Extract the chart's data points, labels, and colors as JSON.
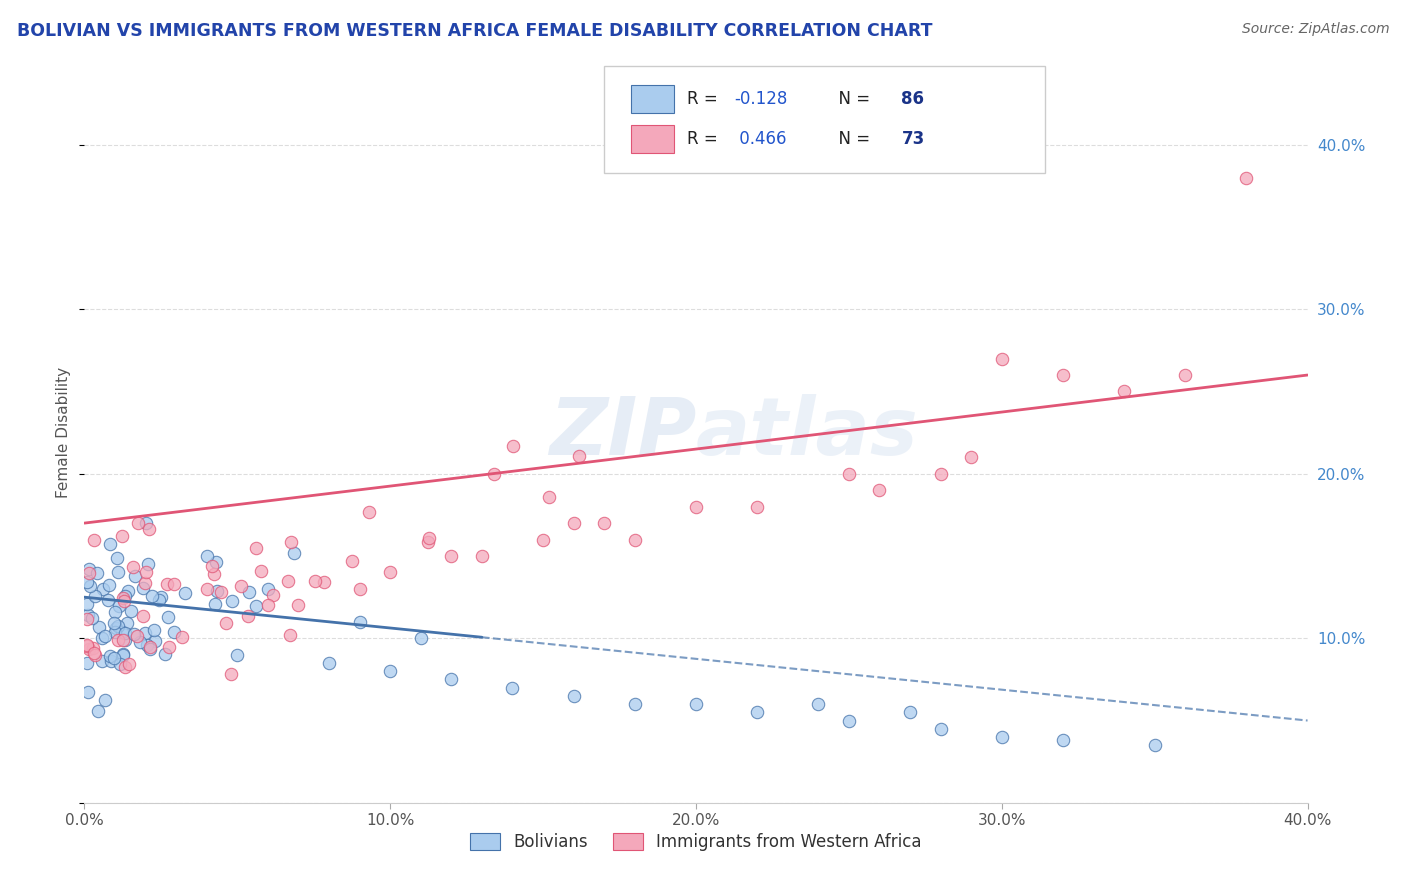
{
  "title": "BOLIVIAN VS IMMIGRANTS FROM WESTERN AFRICA FEMALE DISABILITY CORRELATION CHART",
  "source": "Source: ZipAtlas.com",
  "ylabel": "Female Disability",
  "x_min": 0.0,
  "x_max": 0.4,
  "y_min": 0.0,
  "y_max": 0.45,
  "bolivians_R": -0.128,
  "bolivians_N": 86,
  "western_africa_R": 0.466,
  "western_africa_N": 73,
  "bolivian_color": "#aaccee",
  "western_africa_color": "#f4a8bb",
  "bolivian_line_color": "#4472aa",
  "western_africa_line_color": "#e05575",
  "legend_R_color": "#2255cc",
  "legend_N_color": "#1a3388",
  "title_color": "#2244aa",
  "ytick_color": "#4488cc",
  "background_color": "#ffffff",
  "grid_color": "#dddddd",
  "watermark": "ZIPatlas",
  "x_ticks": [
    0.0,
    0.1,
    0.2,
    0.3,
    0.4
  ],
  "x_tick_labels": [
    "0.0%",
    "10.0%",
    "20.0%",
    "30.0%",
    "40.0%"
  ],
  "y_ticks": [
    0.0,
    0.1,
    0.2,
    0.3,
    0.4
  ],
  "y_tick_labels": [
    "",
    "10.0%",
    "20.0%",
    "30.0%",
    "40.0%"
  ]
}
